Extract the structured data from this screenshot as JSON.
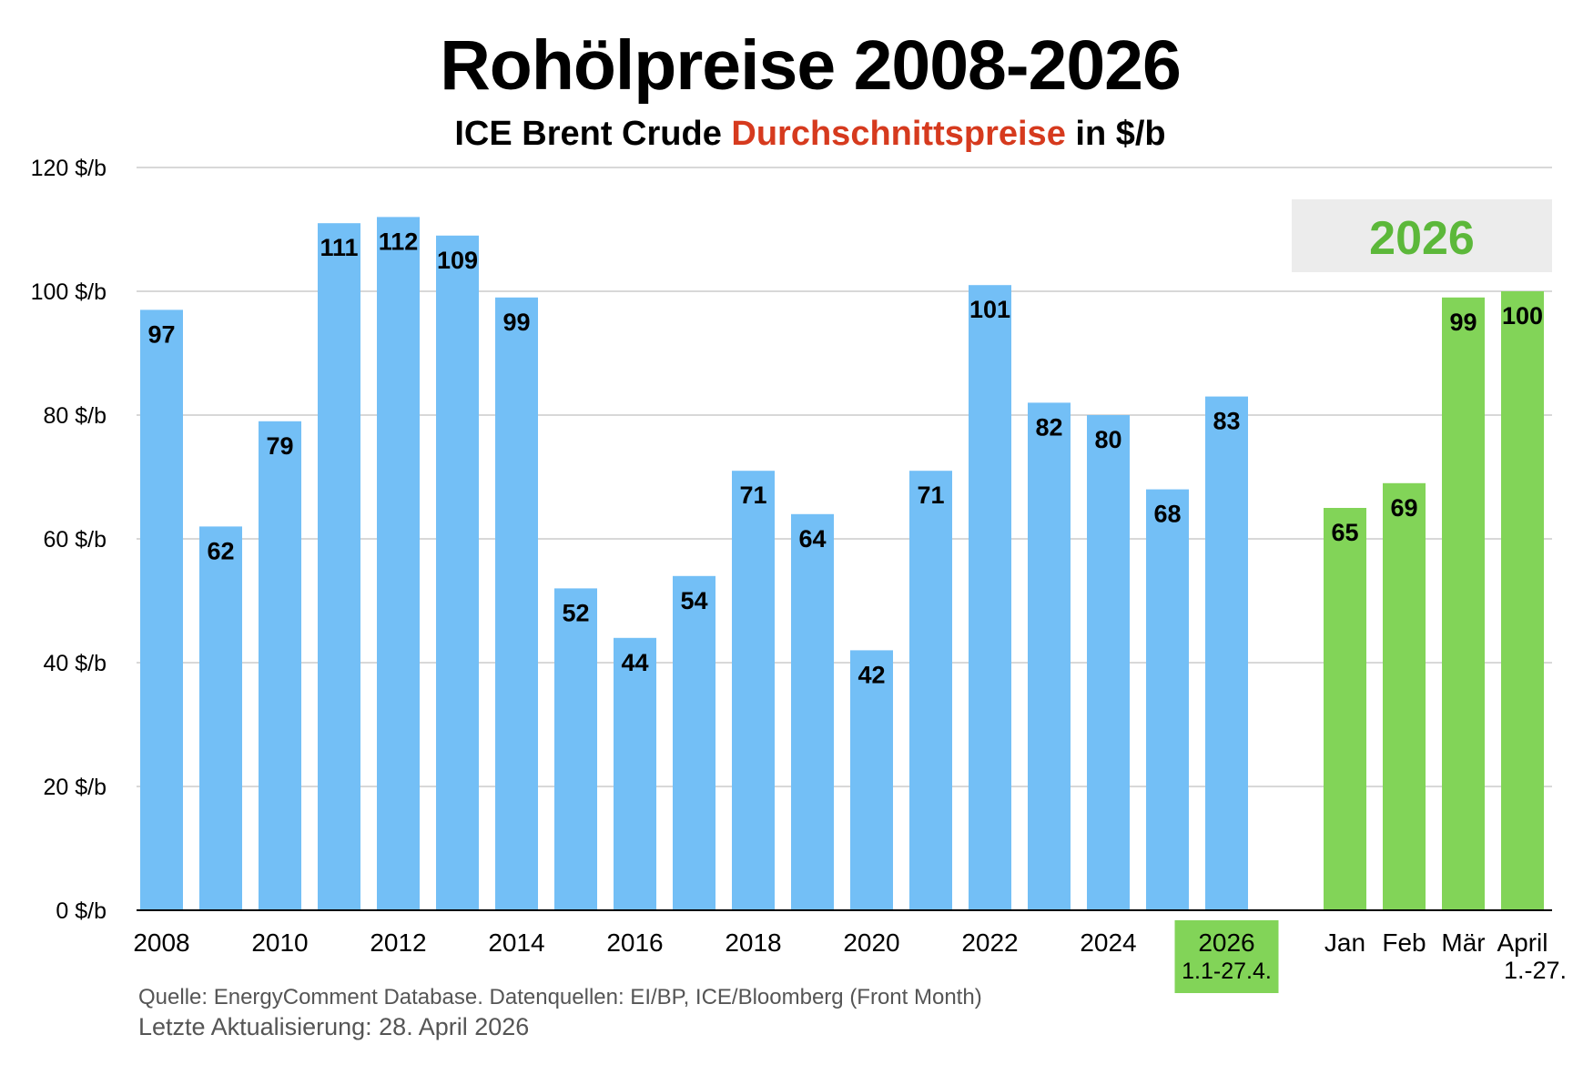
{
  "header": {
    "title": "Rohölpreise 2008-2026",
    "subtitle_part1": "ICE Brent Crude ",
    "subtitle_accent": "Durchschnittspreise",
    "subtitle_part2": " in $/b"
  },
  "colors": {
    "annual_bar": "#73bff6",
    "monthly_bar": "#82d458",
    "accent_red": "#d63a1e",
    "panel_bg": "#ececec",
    "panel_text": "#5cb83a",
    "grid": "#cccccc"
  },
  "chart_data": {
    "type": "bar",
    "ylim": [
      0,
      120
    ],
    "yticks": [
      0,
      20,
      40,
      60,
      80,
      100,
      120
    ],
    "ytick_labels": [
      "0 $/b",
      "20 $/b",
      "40 $/b",
      "60 $/b",
      "80 $/b",
      "100 $/b",
      "120 $/b"
    ],
    "grid": true,
    "annual": {
      "categories": [
        "2008",
        "2009",
        "2010",
        "2011",
        "2012",
        "2013",
        "2014",
        "2015",
        "2016",
        "2017",
        "2018",
        "2019",
        "2020",
        "2021",
        "2022",
        "2023",
        "2024",
        "2025",
        "2026"
      ],
      "values": [
        97,
        62,
        79,
        111,
        112,
        109,
        99,
        52,
        44,
        54,
        71,
        64,
        42,
        71,
        101,
        82,
        80,
        68,
        83
      ],
      "labels": [
        "97",
        "62",
        "79",
        "111",
        "112",
        "109",
        "99",
        "52",
        "44",
        "54",
        "71",
        "64",
        "42",
        "71",
        "101",
        "82",
        "80",
        "68",
        "83"
      ],
      "x_tick_labels": [
        "2008",
        "",
        "2010",
        "",
        "2012",
        "",
        "2014",
        "",
        "2016",
        "",
        "2018",
        "",
        "2020",
        "",
        "2022",
        "",
        "2024",
        "",
        ""
      ],
      "highlight_tick": {
        "line1": "2026",
        "line2": "1.1-27.4."
      }
    },
    "monthly_2026": {
      "panel_label": "2026",
      "categories": [
        "Jan",
        "Feb",
        "Mär",
        "April"
      ],
      "values": [
        65,
        69,
        99,
        100
      ],
      "labels": [
        "65",
        "69",
        "99",
        "100"
      ],
      "april_note": "1.-27."
    }
  },
  "footer": {
    "source": "Quelle: EnergyComment Database. Datenquellen: EI/BP, ICE/Bloomberg (Front Month)",
    "updated": "Letzte Aktualisierung: 28. April 2026"
  }
}
